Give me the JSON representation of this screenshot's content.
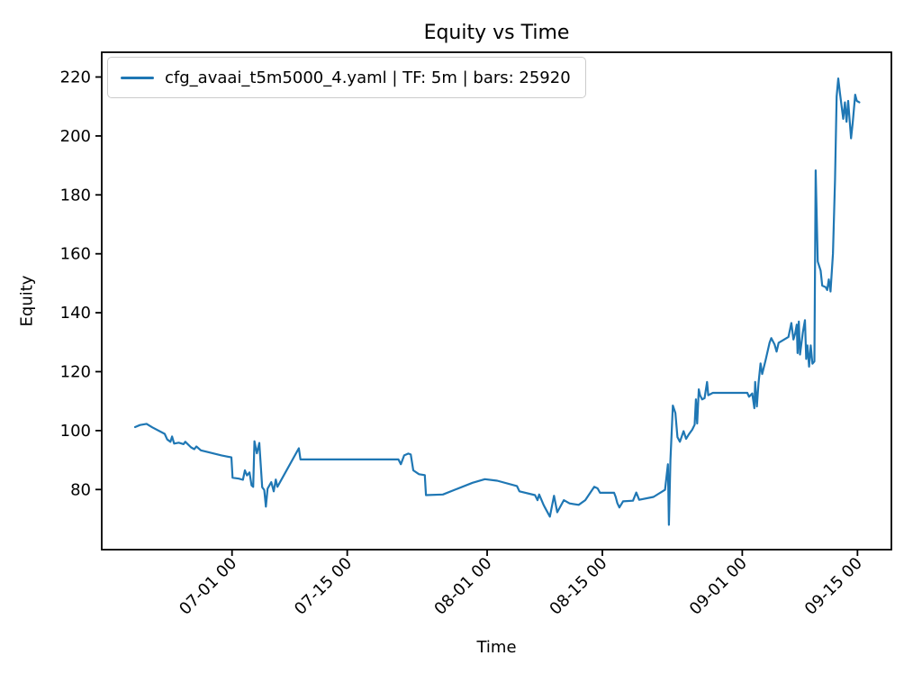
{
  "title": "Equity vs Time",
  "axes": {
    "xlabel": "Time",
    "ylabel": "Equity"
  },
  "legend": {
    "label": "cfg_avaai_t5m5000_4.yaml | TF: 5m | bars: 25920",
    "line_color": "#1f77b4",
    "position": "upper left"
  },
  "colors": {
    "line": "#1f77b4",
    "text": "#000000",
    "spine": "#000000",
    "legend_border": "#cbcbcb",
    "background": "#ffffff"
  },
  "chart_data": {
    "type": "line",
    "title": "Equity vs Time",
    "xlabel": "Time",
    "ylabel": "Equity",
    "grid": false,
    "legend_position": "upper left",
    "x_encoding": "days from first plotted point",
    "x_tick_labels": [
      "07-01 00",
      "07-15 00",
      "08-01 00",
      "08-15 00",
      "09-01 00",
      "09-15 00"
    ],
    "x_tick_days": [
      11.78,
      25.78,
      42.78,
      56.78,
      73.78,
      87.78
    ],
    "xlim_days": [
      -4.05,
      91.9
    ],
    "y_ticks": [
      80,
      100,
      120,
      140,
      160,
      180,
      200,
      220
    ],
    "ylim": [
      59.6,
      228.4
    ],
    "series": [
      {
        "name": "cfg_avaai_t5m5000_4.yaml | TF: 5m | bars: 25920",
        "color": "#1f77b4",
        "points": [
          [
            0.0,
            101.2
          ],
          [
            0.6,
            101.9
          ],
          [
            1.4,
            102.3
          ],
          [
            2.1,
            101.1
          ],
          [
            3.6,
            98.9
          ],
          [
            3.9,
            97.0
          ],
          [
            4.3,
            96.2
          ],
          [
            4.5,
            98.0
          ],
          [
            4.75,
            95.6
          ],
          [
            5.3,
            95.9
          ],
          [
            5.9,
            95.4
          ],
          [
            6.1,
            96.2
          ],
          [
            6.8,
            94.3
          ],
          [
            7.2,
            93.7
          ],
          [
            7.45,
            94.6
          ],
          [
            8.0,
            93.3
          ],
          [
            9.0,
            92.6
          ],
          [
            10.5,
            91.6
          ],
          [
            11.7,
            90.9
          ],
          [
            11.85,
            84.0
          ],
          [
            12.6,
            83.7
          ],
          [
            13.1,
            83.3
          ],
          [
            13.35,
            86.5
          ],
          [
            13.6,
            84.8
          ],
          [
            13.9,
            85.8
          ],
          [
            14.15,
            81.4
          ],
          [
            14.35,
            80.9
          ],
          [
            14.5,
            96.4
          ],
          [
            14.8,
            92.3
          ],
          [
            15.1,
            95.8
          ],
          [
            15.45,
            80.8
          ],
          [
            15.7,
            79.8
          ],
          [
            15.9,
            74.2
          ],
          [
            16.1,
            80.3
          ],
          [
            16.55,
            82.5
          ],
          [
            16.85,
            79.4
          ],
          [
            17.1,
            83.4
          ],
          [
            17.3,
            80.9
          ],
          [
            19.9,
            94.0
          ],
          [
            20.1,
            90.2
          ],
          [
            32.0,
            90.2
          ],
          [
            32.3,
            88.6
          ],
          [
            32.7,
            91.6
          ],
          [
            33.2,
            92.2
          ],
          [
            33.5,
            91.9
          ],
          [
            33.8,
            86.5
          ],
          [
            34.5,
            85.2
          ],
          [
            35.2,
            84.9
          ],
          [
            35.35,
            78.1
          ],
          [
            37.4,
            78.3
          ],
          [
            39.0,
            80.1
          ],
          [
            41.0,
            82.3
          ],
          [
            42.5,
            83.5
          ],
          [
            44.0,
            83.0
          ],
          [
            46.4,
            81.2
          ],
          [
            46.7,
            79.4
          ],
          [
            48.6,
            78.1
          ],
          [
            48.9,
            76.4
          ],
          [
            49.1,
            78.3
          ],
          [
            49.6,
            75.0
          ],
          [
            49.8,
            73.9
          ],
          [
            50.4,
            70.8
          ],
          [
            50.9,
            77.9
          ],
          [
            51.3,
            72.3
          ],
          [
            52.1,
            76.4
          ],
          [
            52.8,
            75.3
          ],
          [
            53.9,
            74.8
          ],
          [
            54.7,
            76.4
          ],
          [
            55.8,
            80.9
          ],
          [
            56.2,
            80.4
          ],
          [
            56.5,
            78.9
          ],
          [
            58.2,
            78.9
          ],
          [
            58.4,
            77.5
          ],
          [
            58.6,
            75.4
          ],
          [
            58.85,
            73.9
          ],
          [
            59.3,
            76.0
          ],
          [
            60.5,
            76.2
          ],
          [
            60.9,
            79.0
          ],
          [
            61.25,
            76.5
          ],
          [
            63.0,
            77.5
          ],
          [
            64.4,
            79.9
          ],
          [
            64.75,
            88.6
          ],
          [
            64.87,
            68.0
          ],
          [
            65.05,
            90.0
          ],
          [
            65.35,
            108.5
          ],
          [
            65.65,
            106.0
          ],
          [
            65.9,
            97.8
          ],
          [
            66.2,
            96.2
          ],
          [
            66.65,
            99.8
          ],
          [
            66.95,
            97.2
          ],
          [
            67.3,
            98.8
          ],
          [
            67.7,
            100.3
          ],
          [
            68.0,
            102.0
          ],
          [
            68.15,
            110.6
          ],
          [
            68.3,
            102.4
          ],
          [
            68.5,
            114.0
          ],
          [
            68.65,
            112.0
          ],
          [
            68.9,
            110.6
          ],
          [
            69.2,
            111.0
          ],
          [
            69.5,
            116.5
          ],
          [
            69.65,
            112.0
          ],
          [
            70.2,
            112.8
          ],
          [
            74.4,
            112.8
          ],
          [
            74.6,
            111.5
          ],
          [
            75.0,
            112.6
          ],
          [
            75.25,
            107.6
          ],
          [
            75.35,
            116.5
          ],
          [
            75.55,
            108.2
          ],
          [
            75.75,
            116.0
          ],
          [
            76.0,
            122.8
          ],
          [
            76.2,
            119.2
          ],
          [
            76.6,
            123.8
          ],
          [
            77.1,
            129.8
          ],
          [
            77.3,
            131.4
          ],
          [
            77.7,
            129.3
          ],
          [
            77.95,
            126.8
          ],
          [
            78.2,
            129.8
          ],
          [
            79.4,
            131.8
          ],
          [
            79.75,
            136.5
          ],
          [
            80.0,
            130.9
          ],
          [
            80.2,
            132.9
          ],
          [
            80.4,
            136.0
          ],
          [
            80.5,
            126.3
          ],
          [
            80.65,
            137.0
          ],
          [
            80.8,
            125.8
          ],
          [
            81.15,
            133.4
          ],
          [
            81.4,
            137.5
          ],
          [
            81.55,
            124.3
          ],
          [
            81.7,
            128.9
          ],
          [
            81.9,
            121.7
          ],
          [
            82.1,
            128.9
          ],
          [
            82.3,
            122.7
          ],
          [
            82.55,
            123.5
          ],
          [
            82.7,
            188.3
          ],
          [
            82.95,
            157.4
          ],
          [
            83.3,
            154.3
          ],
          [
            83.5,
            149.2
          ],
          [
            83.9,
            148.7
          ],
          [
            84.1,
            147.7
          ],
          [
            84.3,
            151.3
          ],
          [
            84.5,
            147.2
          ],
          [
            84.8,
            160.0
          ],
          [
            85.05,
            185.0
          ],
          [
            85.25,
            213.4
          ],
          [
            85.45,
            219.5
          ],
          [
            85.65,
            214.5
          ],
          [
            86.05,
            205.8
          ],
          [
            86.25,
            211.4
          ],
          [
            86.45,
            204.8
          ],
          [
            86.65,
            211.9
          ],
          [
            86.8,
            206.3
          ],
          [
            87.0,
            199.2
          ],
          [
            87.2,
            204.3
          ],
          [
            87.5,
            214.0
          ],
          [
            87.7,
            211.9
          ],
          [
            88.0,
            211.4
          ]
        ]
      }
    ]
  }
}
